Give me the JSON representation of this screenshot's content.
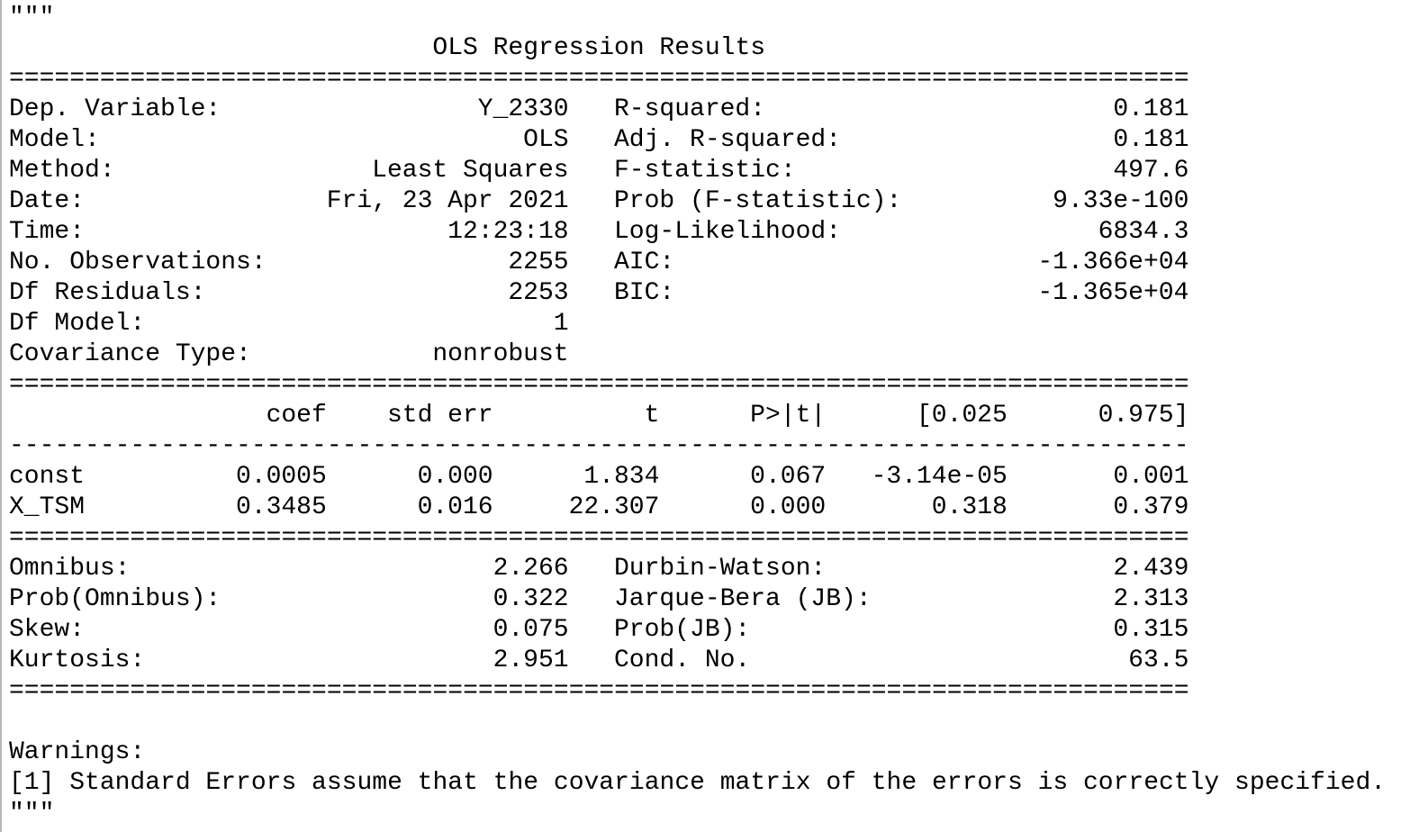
{
  "quote": "\"\"\"",
  "title": "OLS Regression Results",
  "double_rule": "==============================================================================",
  "single_rule": "------------------------------------------------------------------------------",
  "model_info": [
    [
      "Dep. Variable:",
      "Y_2330",
      "R-squared:",
      "0.181"
    ],
    [
      "Model:",
      "OLS",
      "Adj. R-squared:",
      "0.181"
    ],
    [
      "Method:",
      "Least Squares",
      "F-statistic:",
      "497.6"
    ],
    [
      "Date:",
      "Fri, 23 Apr 2021",
      "Prob (F-statistic):",
      "9.33e-100"
    ],
    [
      "Time:",
      "12:23:18",
      "Log-Likelihood:",
      "6834.3"
    ],
    [
      "No. Observations:",
      "2255",
      "AIC:",
      "-1.366e+04"
    ],
    [
      "Df Residuals:",
      "2253",
      "BIC:",
      "-1.365e+04"
    ],
    [
      "Df Model:",
      "1"
    ],
    [
      "Covariance Type:",
      "nonrobust"
    ]
  ],
  "coefficients": {
    "header": [
      "coef",
      "std err",
      "t",
      "P>|t|",
      "[0.025",
      "0.975]"
    ],
    "rows": [
      [
        "const",
        "0.0005",
        "0.000",
        "1.834",
        "0.067",
        "-3.14e-05",
        "0.001"
      ],
      [
        "X_TSM",
        "0.3485",
        "0.016",
        "22.307",
        "0.000",
        "0.318",
        "0.379"
      ]
    ]
  },
  "diagnostics": [
    [
      "Omnibus:",
      "2.266",
      "Durbin-Watson:",
      "2.439"
    ],
    [
      "Prob(Omnibus):",
      "0.322",
      "Jarque-Bera (JB):",
      "2.313"
    ],
    [
      "Skew:",
      "0.075",
      "Prob(JB):",
      "0.315"
    ],
    [
      "Kurtosis:",
      "2.951",
      "Cond. No.",
      "63.5"
    ]
  ],
  "warnings": {
    "title": "Warnings:",
    "items": [
      "[1] Standard Errors assume that the covariance matrix of the errors is correctly specified."
    ]
  }
}
